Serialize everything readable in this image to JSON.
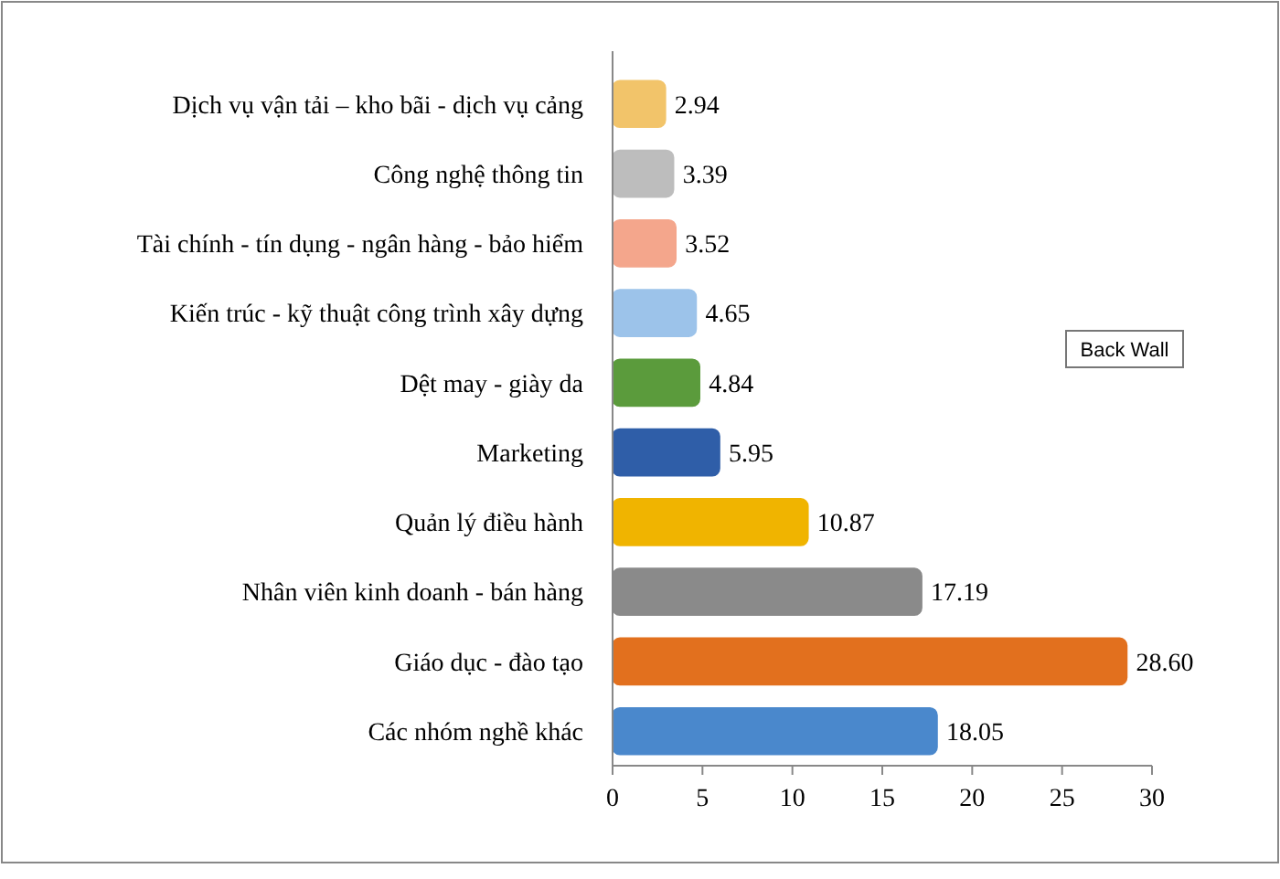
{
  "chart_data": {
    "type": "bar",
    "orientation": "horizontal",
    "categories": [
      "Dịch vụ vận tải – kho bãi - dịch vụ cảng",
      "Công nghệ thông tin",
      "Tài chính - tín dụng - ngân hàng - bảo hiểm",
      "Kiến trúc - kỹ thuật công trình xây dựng",
      "Dệt may - giày da",
      "Marketing",
      "Quản lý điều hành",
      "Nhân viên kinh doanh - bán hàng",
      "Giáo dục - đào tạo",
      "Các nhóm nghề khác"
    ],
    "values": [
      2.94,
      3.39,
      3.52,
      4.65,
      4.84,
      5.95,
      10.87,
      17.19,
      28.6,
      18.05
    ],
    "value_labels": [
      "2.94",
      "3.39",
      "3.52",
      "4.65",
      "4.84",
      "5.95",
      "10.87",
      "17.19",
      "28.60",
      "18.05"
    ],
    "colors": [
      "#f2c46a",
      "#bdbdbd",
      "#f4a68c",
      "#9cc3ea",
      "#5b9b3c",
      "#2f5ea8",
      "#f0b400",
      "#8a8a8a",
      "#e2701e",
      "#4a88cc"
    ],
    "xlim": [
      0,
      30
    ],
    "xticks": [
      0,
      5,
      10,
      15,
      20,
      25,
      30
    ],
    "grid": false,
    "annotations": [
      "Back Wall"
    ]
  }
}
